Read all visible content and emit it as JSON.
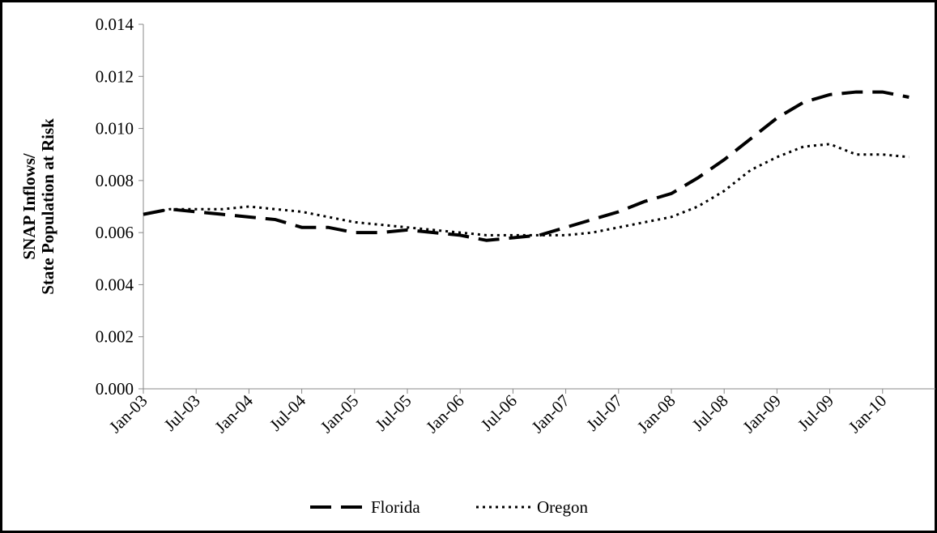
{
  "chart_data": {
    "type": "line",
    "y_label": [
      "SNAP Inflows/",
      "State Population at Risk"
    ],
    "categories": [
      "Jan-03",
      null,
      "Jul-03",
      null,
      "Jan-04",
      null,
      "Jul-04",
      null,
      "Jan-05",
      null,
      "Jul-05",
      null,
      "Jan-06",
      null,
      "Jul-06",
      null,
      "Jan-07",
      null,
      "Jul-07",
      null,
      "Jan-08",
      null,
      "Jul-08",
      null,
      "Jan-09",
      null,
      "Jul-09",
      null,
      "Jan-10",
      null
    ],
    "series": [
      {
        "name": "Florida",
        "color": "#000000",
        "dash": "dashed",
        "values": [
          0.0067,
          0.0069,
          0.0068,
          0.0067,
          0.0066,
          0.0065,
          0.0062,
          0.0062,
          0.006,
          0.006,
          0.0061,
          0.006,
          0.0059,
          0.0057,
          0.0058,
          0.0059,
          0.0062,
          0.0065,
          0.0068,
          0.0072,
          0.0075,
          0.0081,
          0.0088,
          0.0096,
          0.0104,
          0.011,
          0.0113,
          0.0114,
          0.0114,
          0.0112
        ]
      },
      {
        "name": "Oregon",
        "color": "#000000",
        "dash": "dotted",
        "values": [
          0.0067,
          0.0069,
          0.0069,
          0.0069,
          0.007,
          0.0069,
          0.0068,
          0.0066,
          0.0064,
          0.0063,
          0.0062,
          0.0061,
          0.006,
          0.0059,
          0.0059,
          0.0059,
          0.0059,
          0.006,
          0.0062,
          0.0064,
          0.0066,
          0.007,
          0.0076,
          0.0084,
          0.0089,
          0.0093,
          0.0094,
          0.009,
          0.009,
          0.0089
        ]
      }
    ],
    "ylim": [
      0,
      0.014
    ],
    "yticks": [
      {
        "value": 0,
        "label": "0.000"
      },
      {
        "value": 0.002,
        "label": "0.002"
      },
      {
        "value": 0.004,
        "label": "0.004"
      },
      {
        "value": 0.006,
        "label": "0.006"
      },
      {
        "value": 0.008,
        "label": "0.008"
      },
      {
        "value": 0.01,
        "label": "0.010"
      },
      {
        "value": 0.012,
        "label": "0.012"
      },
      {
        "value": 0.014,
        "label": "0.014"
      }
    ],
    "grid": false,
    "legend": "bottom"
  }
}
